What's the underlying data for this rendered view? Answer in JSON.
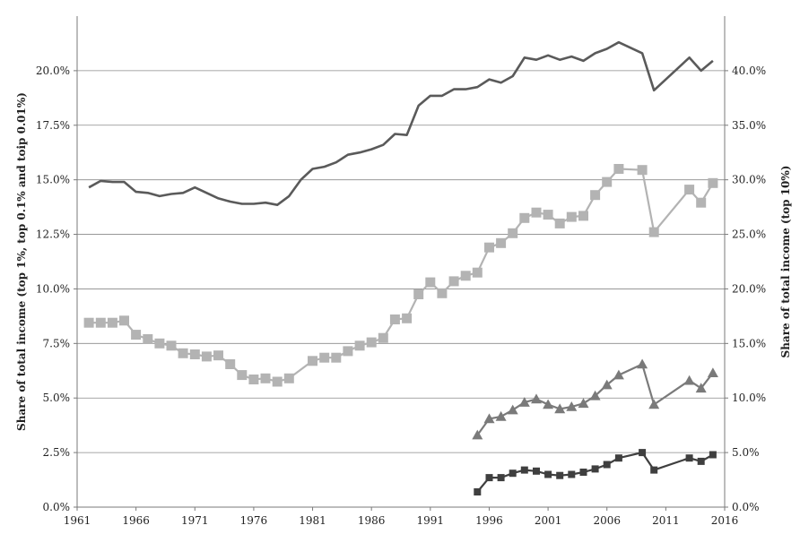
{
  "chart_data": {
    "type": "line",
    "x_ticks": [
      "1961",
      "1966",
      "1971",
      "1976",
      "1981",
      "1986",
      "1991",
      "1996",
      "2001",
      "2006",
      "2011",
      "2016"
    ],
    "xlim": [
      1961,
      2016
    ],
    "y_left": {
      "label": "Share of total income (top 1%, top 0.1% and toip 0.01%)",
      "ticks": [
        "0.0%",
        "2.5%",
        "5.0%",
        "7.5%",
        "10.0%",
        "12.5%",
        "15.0%",
        "17.5%",
        "20.0%"
      ],
      "ylim": [
        0,
        22.5
      ]
    },
    "y_right": {
      "label": "Share of total income (top 10%)",
      "ticks": [
        "0.0%",
        "5.0%",
        "10.0%",
        "15.0%",
        "20.0%",
        "25.0%",
        "30.0%",
        "35.0%",
        "40.0%"
      ],
      "ylim": [
        0,
        45
      ]
    },
    "grid": true,
    "series": [
      {
        "axis": "right",
        "color": "#5a5a5a",
        "marker": "none",
        "x": [
          1962,
          1963,
          1964,
          1965,
          1966,
          1967,
          1968,
          1969,
          1970,
          1971,
          1972,
          1973,
          1974,
          1975,
          1976,
          1977,
          1978,
          1979,
          1980,
          1981,
          1982,
          1983,
          1984,
          1985,
          1986,
          1987,
          1988,
          1989,
          1990,
          1991,
          1992,
          1993,
          1994,
          1995,
          1996,
          1997,
          1998,
          1999,
          2000,
          2001,
          2002,
          2003,
          2004,
          2005,
          2006,
          2007,
          2008,
          2009,
          2010,
          2013,
          2014,
          2015
        ],
        "values": [
          29.3,
          29.9,
          29.8,
          29.8,
          28.9,
          28.8,
          28.5,
          28.7,
          28.8,
          29.3,
          28.8,
          28.3,
          28.0,
          27.8,
          27.8,
          27.9,
          27.7,
          28.5,
          30.0,
          31.0,
          31.2,
          31.6,
          32.3,
          32.5,
          32.8,
          33.2,
          34.2,
          34.1,
          36.8,
          37.7,
          37.7,
          38.3,
          38.3,
          38.5,
          39.2,
          38.9,
          39.5,
          41.2,
          41.0,
          41.4,
          41.0,
          41.3,
          40.9,
          41.6,
          42.0,
          42.6,
          42.1,
          41.6,
          38.2,
          41.2,
          40.0,
          40.9
        ]
      },
      {
        "axis": "left",
        "color": "#b3b3b3",
        "marker": "square",
        "x": [
          1962,
          1963,
          1964,
          1965,
          1966,
          1967,
          1968,
          1969,
          1970,
          1971,
          1972,
          1973,
          1974,
          1975,
          1976,
          1977,
          1978,
          1979,
          1981,
          1982,
          1983,
          1984,
          1985,
          1986,
          1987,
          1988,
          1989,
          1990,
          1991,
          1992,
          1993,
          1994,
          1995,
          1996,
          1997,
          1998,
          1999,
          2000,
          2001,
          2002,
          2003,
          2004,
          2005,
          2006,
          2007,
          2009,
          2010,
          2013,
          2014,
          2015
        ],
        "values": [
          8.45,
          8.45,
          8.45,
          8.55,
          7.9,
          7.7,
          7.5,
          7.4,
          7.05,
          7.0,
          6.9,
          6.95,
          6.55,
          6.05,
          5.85,
          5.9,
          5.75,
          5.9,
          6.7,
          6.85,
          6.85,
          7.15,
          7.4,
          7.55,
          7.75,
          8.6,
          8.65,
          9.75,
          10.3,
          9.8,
          10.35,
          10.6,
          10.75,
          11.9,
          12.1,
          12.55,
          13.25,
          13.5,
          13.4,
          13.0,
          13.3,
          13.35,
          14.3,
          14.9,
          15.5,
          15.45,
          12.6,
          14.55,
          13.95,
          14.85
        ]
      },
      {
        "axis": "left",
        "color": "#7a7a7a",
        "marker": "triangle",
        "x": [
          1995,
          1996,
          1997,
          1998,
          1999,
          2000,
          2001,
          2002,
          2003,
          2004,
          2005,
          2006,
          2007,
          2009,
          2010,
          2013,
          2014,
          2015
        ],
        "values": [
          3.3,
          4.05,
          4.15,
          4.45,
          4.8,
          4.95,
          4.7,
          4.5,
          4.6,
          4.75,
          5.1,
          5.6,
          6.05,
          6.55,
          4.7,
          5.8,
          5.45,
          6.15
        ]
      },
      {
        "axis": "left",
        "color": "#3f3f3f",
        "marker": "square",
        "x": [
          1995,
          1996,
          1997,
          1998,
          1999,
          2000,
          2001,
          2002,
          2003,
          2004,
          2005,
          2006,
          2007,
          2009,
          2010,
          2013,
          2014,
          2015
        ],
        "values": [
          0.7,
          1.35,
          1.35,
          1.55,
          1.7,
          1.65,
          1.5,
          1.45,
          1.5,
          1.6,
          1.75,
          1.95,
          2.25,
          2.5,
          1.7,
          2.25,
          2.1,
          2.4
        ]
      }
    ]
  }
}
